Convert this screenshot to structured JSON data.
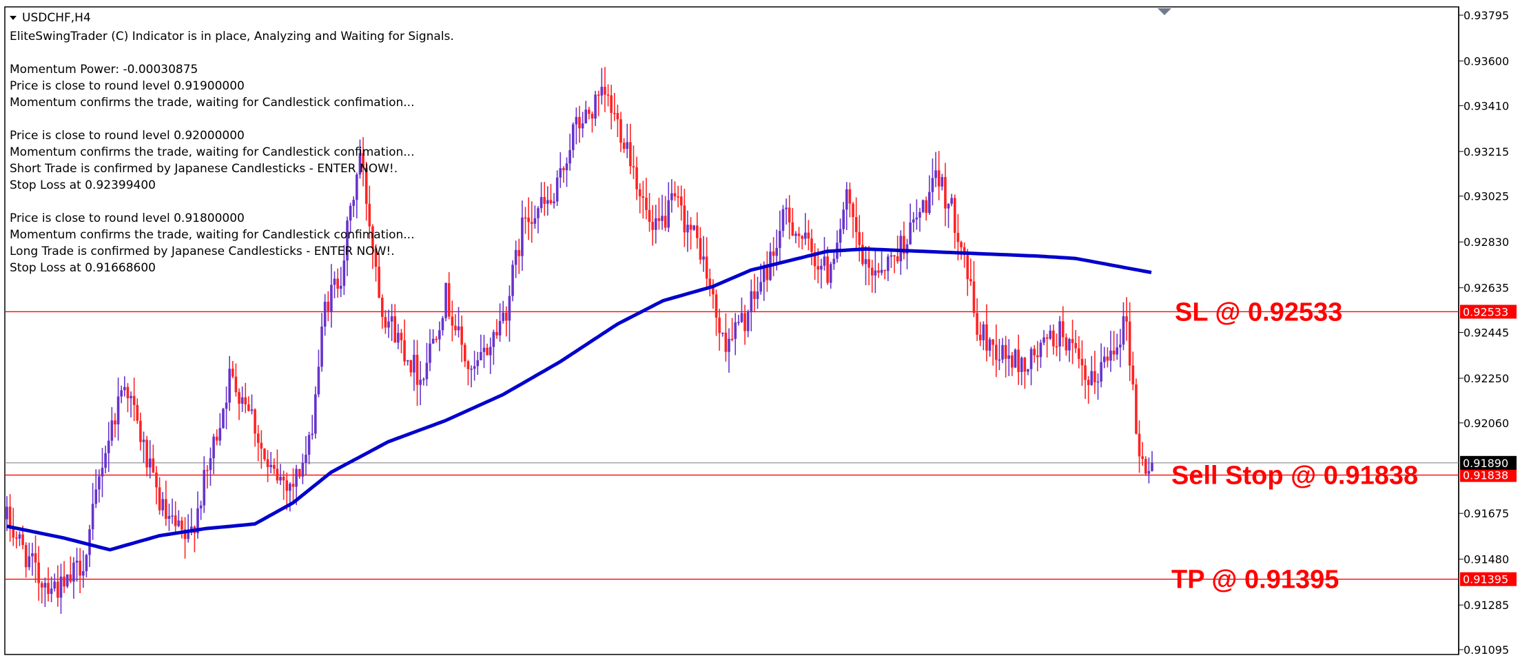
{
  "chart_data": {
    "type": "candlestick",
    "title": "USDCHF,H4",
    "symbol_header": "USDCHF,H4",
    "ylim": [
      0.9103,
      0.9383
    ],
    "y_ticks": [
      "0.93795",
      "0.93600",
      "0.93410",
      "0.93215",
      "0.93025",
      "0.92830",
      "0.92635",
      "0.92445",
      "0.92250",
      "0.92060",
      "0.91675",
      "0.91480",
      "0.91285",
      "0.91095"
    ],
    "info_lines": [
      "EliteSwingTrader (C) Indicator is in place, Analyzing and Waiting for Signals.",
      "",
      "Momentum Power: -0.00030875",
      "Price is close to round level 0.91900000",
      "Momentum confirms the trade, waiting for Candlestick confimation...",
      "",
      "Price is close to round level 0.92000000",
      "Momentum confirms the trade, waiting for Candlestick confimation...",
      "Short Trade is confirmed by Japanese Candlesticks - ENTER NOW!.",
      "Stop Loss at 0.92399400",
      "",
      "Price is close to round level 0.91800000",
      "Momentum confirms the trade, waiting for Candlestick confimation...",
      "Long Trade is confirmed by Japanese Candlesticks - ENTER NOW!.",
      "Stop Loss at 0.91668600"
    ],
    "levels": [
      {
        "label": "SL @ 0.92533",
        "value": 0.92533,
        "tag": "0.92533",
        "color": "#ff0000"
      },
      {
        "label": "Sell Stop @ 0.91838",
        "value": 0.91838,
        "tag": "0.91838",
        "color": "#ff0000"
      },
      {
        "label": "TP @ 0.91395",
        "value": 0.91395,
        "tag": "0.91395",
        "color": "#ff0000"
      }
    ],
    "current_price": {
      "value": 0.9189,
      "tag": "0.91890",
      "color": "#000000"
    },
    "colors": {
      "bull": "#6633cc",
      "bear": "#ff2222",
      "ma": "#0000cc",
      "grid_line": "#888888"
    },
    "candle_keypoints": [
      [
        0,
        0.9165
      ],
      [
        10,
        0.914
      ],
      [
        18,
        0.9135
      ],
      [
        25,
        0.915
      ],
      [
        30,
        0.919
      ],
      [
        37,
        0.9225
      ],
      [
        46,
        0.918
      ],
      [
        50,
        0.9165
      ],
      [
        57,
        0.9155
      ],
      [
        63,
        0.9185
      ],
      [
        70,
        0.9225
      ],
      [
        76,
        0.9215
      ],
      [
        82,
        0.9185
      ],
      [
        90,
        0.918
      ],
      [
        95,
        0.9195
      ],
      [
        100,
        0.9255
      ],
      [
        105,
        0.927
      ],
      [
        111,
        0.932
      ],
      [
        118,
        0.9255
      ],
      [
        124,
        0.924
      ],
      [
        130,
        0.9225
      ],
      [
        138,
        0.926
      ],
      [
        146,
        0.9225
      ],
      [
        152,
        0.924
      ],
      [
        157,
        0.9255
      ],
      [
        163,
        0.9295
      ],
      [
        172,
        0.93
      ],
      [
        178,
        0.933
      ],
      [
        188,
        0.9345
      ],
      [
        195,
        0.9325
      ],
      [
        203,
        0.9285
      ],
      [
        210,
        0.93
      ],
      [
        218,
        0.928
      ],
      [
        225,
        0.924
      ],
      [
        232,
        0.925
      ],
      [
        240,
        0.9275
      ],
      [
        245,
        0.9295
      ],
      [
        252,
        0.928
      ],
      [
        258,
        0.927
      ],
      [
        264,
        0.93
      ],
      [
        270,
        0.927
      ],
      [
        278,
        0.9275
      ],
      [
        285,
        0.929
      ],
      [
        293,
        0.931
      ],
      [
        300,
        0.9285
      ],
      [
        305,
        0.9245
      ],
      [
        313,
        0.9235
      ],
      [
        320,
        0.923
      ],
      [
        327,
        0.924
      ],
      [
        332,
        0.9245
      ],
      [
        340,
        0.922
      ],
      [
        346,
        0.9235
      ],
      [
        352,
        0.925
      ],
      [
        356,
        0.919
      ],
      [
        360,
        0.9186
      ]
    ],
    "ma_keypoints": [
      [
        0,
        0.9162
      ],
      [
        15,
        0.9157
      ],
      [
        27,
        0.9152
      ],
      [
        40,
        0.9158
      ],
      [
        52,
        0.9161
      ],
      [
        65,
        0.9163
      ],
      [
        75,
        0.9172
      ],
      [
        85,
        0.9185
      ],
      [
        100,
        0.9198
      ],
      [
        115,
        0.9207
      ],
      [
        130,
        0.9218
      ],
      [
        145,
        0.9232
      ],
      [
        160,
        0.9248
      ],
      [
        172,
        0.9258
      ],
      [
        185,
        0.9264
      ],
      [
        195,
        0.9271
      ],
      [
        205,
        0.9275
      ],
      [
        215,
        0.9279
      ],
      [
        225,
        0.928
      ],
      [
        240,
        0.9279
      ],
      [
        255,
        0.9278
      ],
      [
        270,
        0.9277
      ],
      [
        280,
        0.9276
      ],
      [
        290,
        0.9273
      ],
      [
        300,
        0.927
      ]
    ],
    "ma_offset_candles": 60
  }
}
